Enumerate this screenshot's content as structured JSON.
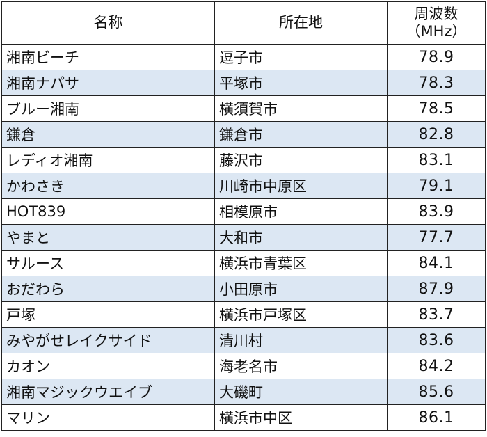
{
  "headers": {
    "name": "名称",
    "location": "所在地",
    "frequency_line1": "周波数",
    "frequency_line2": "（MHz）"
  },
  "rows": [
    {
      "name": "湘南ビーチ",
      "location": "逗子市",
      "frequency": "78.9"
    },
    {
      "name": "湘南ナパサ",
      "location": "平塚市",
      "frequency": "78.3"
    },
    {
      "name": "ブルー湘南",
      "location": "横須賀市",
      "frequency": "78.5"
    },
    {
      "name": "鎌倉",
      "location": "鎌倉市",
      "frequency": "82.8"
    },
    {
      "name": "レディオ湘南",
      "location": "藤沢市",
      "frequency": "83.1"
    },
    {
      "name": "かわさき",
      "location": "川崎市中原区",
      "frequency": "79.1"
    },
    {
      "name": "HOT839",
      "location": "相模原市",
      "frequency": "83.9"
    },
    {
      "name": "やまと",
      "location": "大和市",
      "frequency": "77.7"
    },
    {
      "name": "サルース",
      "location": "横浜市青葉区",
      "frequency": "84.1"
    },
    {
      "name": "おだわら",
      "location": "小田原市",
      "frequency": "87.9"
    },
    {
      "name": "戸塚",
      "location": "横浜市戸塚区",
      "frequency": "83.7"
    },
    {
      "name": "みやがせレイクサイド",
      "location": "清川村",
      "frequency": "83.6"
    },
    {
      "name": "カオン",
      "location": "海老名市",
      "frequency": "84.2"
    },
    {
      "name": "湘南マジックウエイブ",
      "location": "大磯町",
      "frequency": "85.6"
    },
    {
      "name": "マリン",
      "location": "横浜市中区",
      "frequency": "86.1"
    }
  ],
  "colors": {
    "stripe": "#dce7f3",
    "border": "#222222"
  }
}
